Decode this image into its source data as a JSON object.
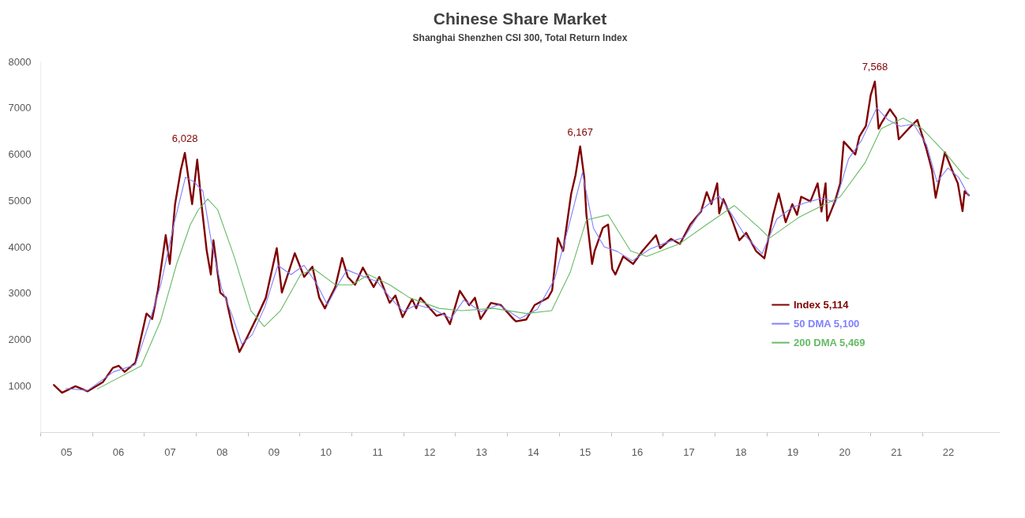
{
  "chart_data": {
    "type": "line",
    "title": "Chinese Share Market",
    "subtitle": "Shanghai Shenzhen CSI 300, Total Return Index",
    "xlim": [
      "2005-01-01",
      "2023-07-01"
    ],
    "xticks": [
      {
        "value": "2005-07-02",
        "label": "05"
      },
      {
        "value": "2006-07-02",
        "label": "06"
      },
      {
        "value": "2007-07-02",
        "label": "07"
      },
      {
        "value": "2008-07-02",
        "label": "08"
      },
      {
        "value": "2009-07-02",
        "label": "09"
      },
      {
        "value": "2010-07-02",
        "label": "10"
      },
      {
        "value": "2011-07-02",
        "label": "11"
      },
      {
        "value": "2012-07-02",
        "label": "12"
      },
      {
        "value": "2013-07-02",
        "label": "13"
      },
      {
        "value": "2014-07-02",
        "label": "14"
      },
      {
        "value": "2015-07-02",
        "label": "15"
      },
      {
        "value": "2016-07-02",
        "label": "16"
      },
      {
        "value": "2017-07-02",
        "label": "17"
      },
      {
        "value": "2018-07-02",
        "label": "18"
      },
      {
        "value": "2019-07-02",
        "label": "19"
      },
      {
        "value": "2020-07-02",
        "label": "20"
      },
      {
        "value": "2021-07-02",
        "label": "21"
      },
      {
        "value": "2022-07-02",
        "label": "22"
      }
    ],
    "ylim": [
      0,
      8000
    ],
    "yticks": [
      1000,
      2000,
      3000,
      4000,
      5000,
      6000,
      7000,
      8000
    ],
    "legend": "right",
    "marker": "none",
    "annotations": [
      {
        "text": "6,028",
        "x": "2007-10-16",
        "y": 6028
      },
      {
        "text": "6,167",
        "x": "2015-05-30",
        "y": 6167
      },
      {
        "text": "7,568",
        "x": "2021-02-02",
        "y": 7568
      }
    ],
    "series": [
      {
        "name": "Index 5,114",
        "color": "#800000",
        "x": [
          "2005-04-07",
          "2005-06-03",
          "2005-09-06",
          "2005-12-01",
          "2006-03-17",
          "2006-05-27",
          "2006-07-08",
          "2006-08-18",
          "2006-11-02",
          "2007-01-19",
          "2007-02-28",
          "2007-04-09",
          "2007-06-03",
          "2007-07-02",
          "2007-08-08",
          "2007-09-17",
          "2007-10-16",
          "2007-12-06",
          "2008-01-11",
          "2008-02-10",
          "2008-03-18",
          "2008-04-16",
          "2008-05-04",
          "2008-06-21",
          "2008-07-31",
          "2008-09-17",
          "2008-11-03",
          "2008-12-28",
          "2009-02-28",
          "2009-05-08",
          "2009-07-24",
          "2009-08-29",
          "2009-11-28",
          "2010-02-02",
          "2010-04-01",
          "2010-05-19",
          "2010-06-28",
          "2010-09-09",
          "2010-10-27",
          "2010-12-06",
          "2011-01-26",
          "2011-03-22",
          "2011-06-06",
          "2011-07-16",
          "2011-09-27",
          "2011-11-06",
          "2011-12-27",
          "2012-03-03",
          "2012-04-01",
          "2012-04-30",
          "2012-08-21",
          "2012-10-15",
          "2012-11-24",
          "2013-02-02",
          "2013-04-09",
          "2013-05-19",
          "2013-06-28",
          "2013-09-09",
          "2013-11-18",
          "2014-02-14",
          "2014-03-04",
          "2014-05-16",
          "2014-07-13",
          "2014-10-16",
          "2014-11-14",
          "2014-12-24",
          "2015-01-30",
          "2015-03-28",
          "2015-04-27",
          "2015-05-30",
          "2015-06-28",
          "2015-07-13",
          "2015-08-22",
          "2015-09-09",
          "2015-11-06",
          "2015-12-13",
          "2016-01-11",
          "2016-02-02",
          "2016-03-28",
          "2016-06-06",
          "2016-08-11",
          "2016-11-14",
          "2016-12-13",
          "2017-02-28",
          "2017-05-01",
          "2017-07-13",
          "2017-09-27",
          "2017-11-06",
          "2017-12-09",
          "2018-01-19",
          "2018-02-02",
          "2018-03-03",
          "2018-04-27",
          "2018-06-24",
          "2018-08-11",
          "2018-10-19",
          "2018-12-17",
          "2019-02-17",
          "2019-03-28",
          "2019-05-16",
          "2019-07-02",
          "2019-08-04",
          "2019-09-02",
          "2019-11-06",
          "2019-12-27",
          "2020-01-23",
          "2020-02-21",
          "2020-03-03",
          "2020-04-27",
          "2020-06-03",
          "2020-06-28",
          "2020-07-31",
          "2020-09-17",
          "2020-10-16",
          "2020-12-01",
          "2021-01-04",
          "2021-02-02",
          "2021-02-28",
          "2021-03-18",
          "2021-05-19",
          "2021-07-02",
          "2021-07-20",
          "2021-09-27",
          "2021-11-28",
          "2022-01-30",
          "2022-03-11",
          "2022-04-06",
          "2022-06-10",
          "2022-07-31",
          "2022-09-09",
          "2022-10-12",
          "2022-10-27",
          "2022-11-25"
        ],
        "values": [
          1016,
          850,
          990,
          880,
          1075,
          1385,
          1430,
          1300,
          1500,
          2560,
          2440,
          3060,
          4250,
          3630,
          4920,
          5650,
          6028,
          4920,
          5880,
          4920,
          3910,
          3400,
          4140,
          3010,
          2900,
          2230,
          1730,
          2050,
          2440,
          2900,
          3970,
          3010,
          3860,
          3350,
          3570,
          2900,
          2670,
          3130,
          3760,
          3350,
          3180,
          3550,
          3130,
          3350,
          2790,
          2950,
          2480,
          2870,
          2670,
          2900,
          2510,
          2560,
          2330,
          3050,
          2740,
          2900,
          2440,
          2790,
          2740,
          2440,
          2390,
          2430,
          2740,
          2900,
          3060,
          4190,
          3910,
          5150,
          5540,
          6167,
          5490,
          4690,
          3630,
          3910,
          4410,
          4480,
          3520,
          3400,
          3790,
          3630,
          3910,
          4250,
          3970,
          4170,
          4060,
          4480,
          4760,
          5180,
          4920,
          5370,
          4720,
          5030,
          4640,
          4140,
          4300,
          3910,
          3750,
          4690,
          5150,
          4530,
          4920,
          4690,
          5080,
          4980,
          5370,
          4760,
          5370,
          4560,
          4980,
          5370,
          6270,
          6160,
          5990,
          6380,
          6610,
          7280,
          7568,
          6550,
          6660,
          6970,
          6780,
          6320,
          6550,
          6740,
          6120,
          5650,
          5060,
          6040,
          5650,
          5370,
          4770,
          5200,
          5114
        ]
      },
      {
        "name": "50 DMA 5,100",
        "color": "#8080ff",
        "x": [
          "2005-07-01",
          "2005-12-01",
          "2006-06-01",
          "2006-11-01",
          "2007-02-01",
          "2007-05-01",
          "2007-08-01",
          "2007-10-20",
          "2007-12-20",
          "2008-02-20",
          "2008-04-20",
          "2008-07-01",
          "2008-09-15",
          "2008-11-20",
          "2009-02-01",
          "2009-05-01",
          "2009-08-01",
          "2009-11-01",
          "2010-02-01",
          "2010-05-01",
          "2010-07-15",
          "2010-10-01",
          "2010-12-01",
          "2011-04-01",
          "2011-07-01",
          "2011-10-01",
          "2012-01-01",
          "2012-04-01",
          "2012-08-01",
          "2012-12-01",
          "2013-03-01",
          "2013-07-01",
          "2013-11-01",
          "2014-04-01",
          "2014-08-01",
          "2014-12-01",
          "2015-03-15",
          "2015-06-15",
          "2015-09-01",
          "2015-11-15",
          "2016-02-15",
          "2016-06-01",
          "2016-10-01",
          "2017-02-01",
          "2017-06-01",
          "2017-10-01",
          "2018-02-01",
          "2018-05-01",
          "2018-08-01",
          "2018-12-01",
          "2019-03-15",
          "2019-07-01",
          "2019-10-01",
          "2020-02-01",
          "2020-05-01",
          "2020-08-01",
          "2020-11-01",
          "2021-02-15",
          "2021-05-01",
          "2021-08-01",
          "2021-11-01",
          "2022-02-01",
          "2022-04-15",
          "2022-07-01",
          "2022-09-15",
          "2022-11-25"
        ],
        "values": [
          940,
          900,
          1300,
          1450,
          2300,
          3200,
          4500,
          5500,
          5400,
          5200,
          4100,
          3100,
          2500,
          1900,
          2100,
          2700,
          3600,
          3400,
          3600,
          3200,
          2750,
          3200,
          3500,
          3350,
          3250,
          2900,
          2600,
          2750,
          2650,
          2450,
          2850,
          2600,
          2750,
          2450,
          2650,
          3300,
          4500,
          5600,
          4400,
          4000,
          3900,
          3700,
          3950,
          4100,
          4200,
          4800,
          5100,
          4700,
          4250,
          3850,
          4600,
          4850,
          4950,
          5050,
          4950,
          5900,
          6300,
          7000,
          6750,
          6600,
          6650,
          6200,
          5400,
          5700,
          5500,
          5100
        ]
      },
      {
        "name": "200 DMA 5,469",
        "color": "#66bb66",
        "x": [
          "2006-02-06",
          "2006-12-13",
          "2007-04-27",
          "2007-08-19",
          "2007-11-24",
          "2008-01-19",
          "2008-03-25",
          "2008-06-03",
          "2008-09-27",
          "2009-01-23",
          "2009-04-27",
          "2009-08-19",
          "2010-01-08",
          "2010-04-13",
          "2010-09-09",
          "2011-01-04",
          "2011-05-01",
          "2011-09-27",
          "2012-02-14",
          "2012-09-09",
          "2013-02-14",
          "2013-09-27",
          "2014-05-16",
          "2014-11-10",
          "2015-03-21",
          "2015-07-13",
          "2015-12-13",
          "2016-05-19",
          "2016-09-09",
          "2017-05-01",
          "2017-11-06",
          "2018-05-19",
          "2018-11-10",
          "2019-01-23",
          "2019-08-19",
          "2020-06-03",
          "2020-11-24",
          "2021-03-18",
          "2021-08-19",
          "2022-01-01",
          "2022-06-24",
          "2022-11-01",
          "2022-11-25"
        ],
        "values": [
          930,
          1430,
          2390,
          3630,
          4480,
          4800,
          5030,
          4800,
          3790,
          2620,
          2280,
          2620,
          3400,
          3520,
          3180,
          3180,
          3400,
          3180,
          2900,
          2670,
          2620,
          2670,
          2560,
          2620,
          3450,
          4580,
          4690,
          3910,
          3790,
          4070,
          4480,
          4890,
          4410,
          4190,
          4640,
          5080,
          5810,
          6550,
          6780,
          6550,
          5990,
          5500,
          5469
        ]
      }
    ]
  }
}
